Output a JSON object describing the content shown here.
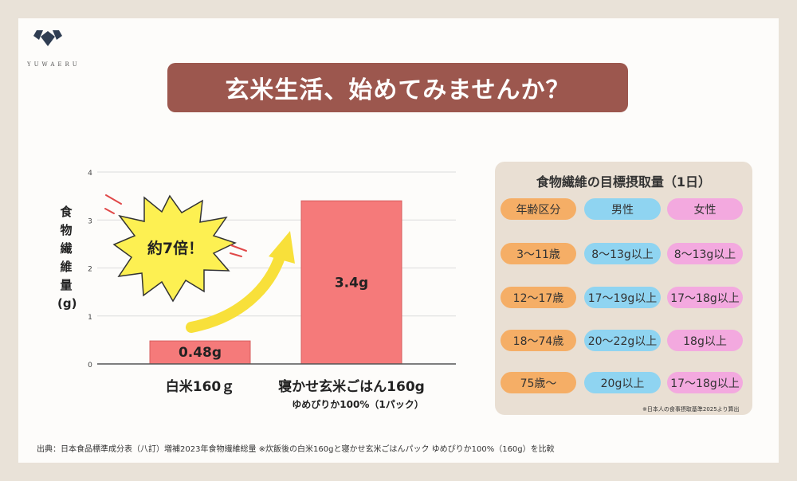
{
  "logo": {
    "text": "YUWAERU",
    "icon": "diamond-chevron-logo-icon"
  },
  "title": "玄米生活、始めてみませんか？",
  "chart_data": {
    "type": "bar",
    "categories": [
      "白米160ｇ",
      "寝かせ玄米ごはん160g"
    ],
    "category_sublabels": [
      "",
      "ゆめぴりか100%（1パック）"
    ],
    "values": [
      0.48,
      3.4
    ],
    "data_labels": [
      "0.48g",
      "3.4g"
    ],
    "yticks": [
      "0",
      "1",
      "2",
      "3",
      "4"
    ],
    "ylim": [
      0,
      4
    ],
    "ylabel": "食物繊維量(g)",
    "grid": true,
    "bar_color": "#f57a7a",
    "annotation": "約7倍！"
  },
  "ylabel_lines": [
    "食",
    "物",
    "繊",
    "維",
    "量",
    "(g)"
  ],
  "table": {
    "title": "食物繊維の目標摂取量（1日）",
    "headers": [
      "年齢区分",
      "男性",
      "女性"
    ],
    "rows": [
      [
        "3〜11歳",
        "8〜13g以上",
        "8〜13g以上"
      ],
      [
        "12〜17歳",
        "17〜19g以上",
        "17〜18g以上"
      ],
      [
        "18〜74歳",
        "20〜22g以上",
        "18g以上"
      ],
      [
        "75歳〜",
        "20g以上",
        "17〜18g以上"
      ]
    ],
    "note": "※日本人の食事摂取基準2025より算出"
  },
  "source": "出典：日本食品標準成分表（八訂）増補2023年食物繊維総量 ※炊飯後の白米160gと寝かせ玄米ごはんパック ゆめぴりか100%（160g）を比較",
  "colors": {
    "background": "#e9e2d8",
    "title_band": "#9c574e",
    "age": "#f5ae66",
    "male": "#8fd4f1",
    "female": "#f3a9df",
    "arrow": "#f8e03a",
    "burst": "#fdf052"
  }
}
